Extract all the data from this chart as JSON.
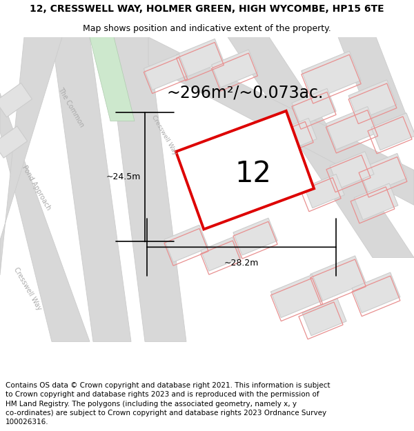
{
  "title": "12, CRESSWELL WAY, HOLMER GREEN, HIGH WYCOMBE, HP15 6TE",
  "subtitle": "Map shows position and indicative extent of the property.",
  "footer": "Contains OS data © Crown copyright and database right 2021. This information is subject\nto Crown copyright and database rights 2023 and is reproduced with the permission of\nHM Land Registry. The polygons (including the associated geometry, namely x, y\nco-ordinates) are subject to Crown copyright and database rights 2023 Ordnance Survey\n100026316.",
  "area_text": "~296m²/~0.073ac.",
  "map_bg": "#f2f2f2",
  "title_fontsize": 10,
  "subtitle_fontsize": 9,
  "footer_fontsize": 7.5,
  "area_fontsize": 17,
  "property_number": "12",
  "prop_number_fontsize": 30,
  "width_label": "~28.2m",
  "height_label": "~24.5m",
  "red_plot_color": "#dd0000",
  "road_color": "#d8d8d8",
  "road_edge": "#cccccc",
  "building_fill": "#e2e2e2",
  "building_edge": "#cccccc",
  "red_boundary": "#e89090"
}
